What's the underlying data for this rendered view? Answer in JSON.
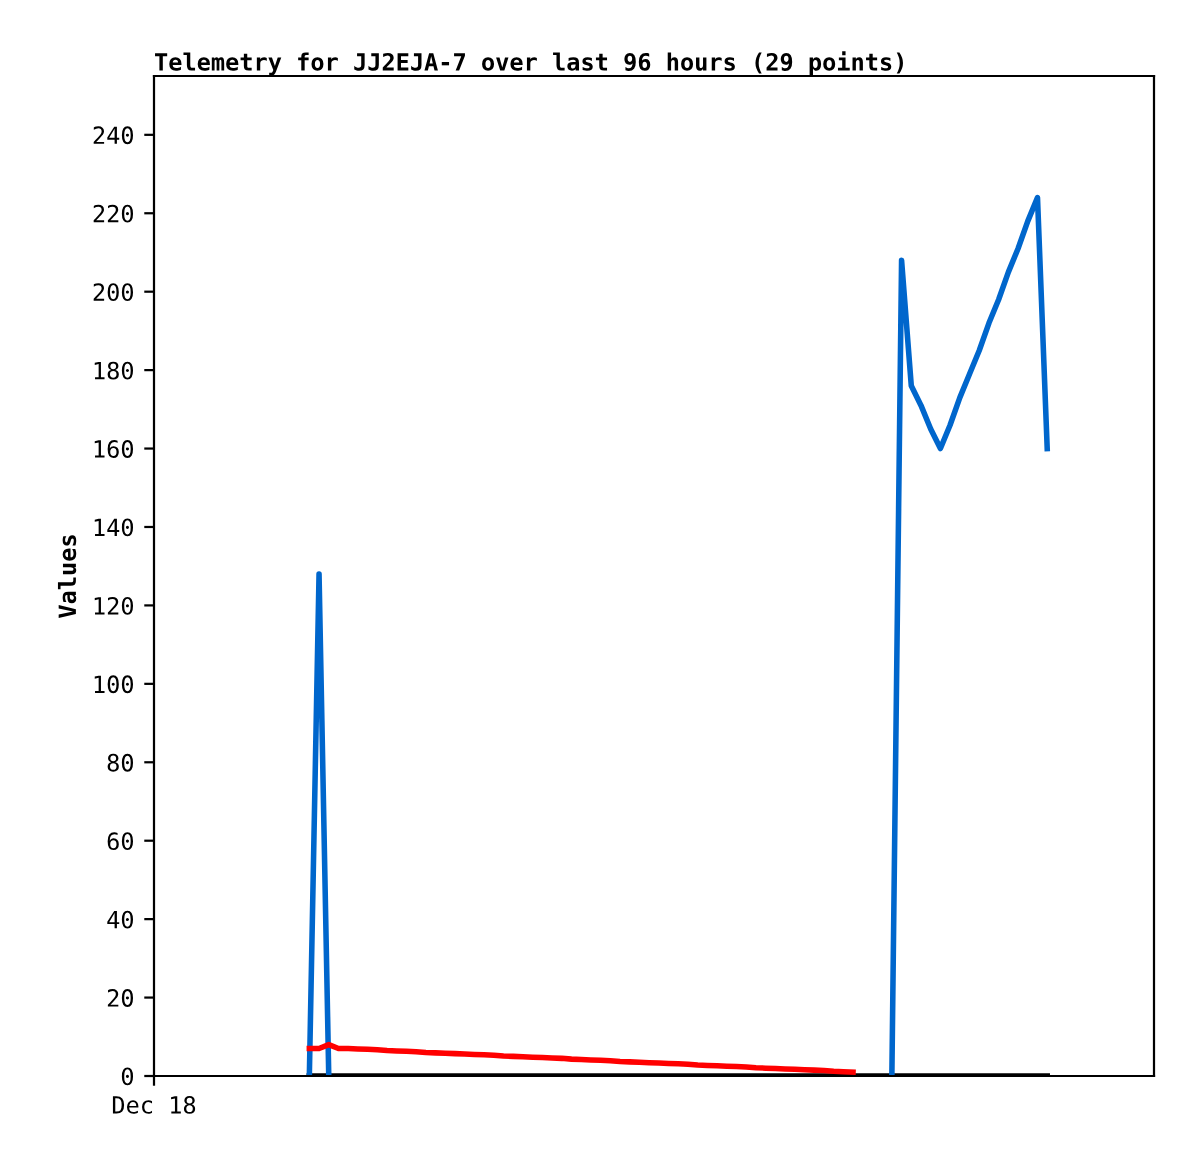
{
  "chart_data": {
    "type": "line",
    "title": "Telemetry for JJ2EJA-7 over last 96 hours (29 points)",
    "ylabel": "Values",
    "categories": [
      "Dec 18",
      null,
      null,
      null,
      null,
      null,
      null,
      null,
      null,
      null,
      null,
      null,
      null,
      null,
      null,
      null,
      null,
      null,
      null,
      null,
      null,
      null,
      null,
      null,
      null,
      null,
      null,
      null,
      null,
      null,
      null,
      null,
      null,
      null,
      null,
      null,
      null,
      null,
      null,
      null,
      null,
      null,
      null,
      null,
      null,
      null,
      null,
      null,
      null,
      null,
      null,
      null,
      null,
      null,
      null,
      null,
      null,
      null,
      null,
      null,
      null,
      null,
      null,
      null,
      null,
      null,
      null,
      null,
      null,
      null,
      null,
      null,
      null,
      null,
      null,
      null,
      null,
      null,
      null,
      null,
      null,
      null,
      null,
      null,
      null,
      null,
      null,
      null,
      null,
      null,
      null,
      null,
      null,
      null,
      null,
      null,
      null,
      null,
      null,
      null
    ],
    "ylim": [
      0,
      255
    ],
    "yticks": [
      0,
      20,
      40,
      60,
      80,
      100,
      120,
      140,
      160,
      180,
      200,
      220,
      240
    ],
    "grid": false,
    "legend": false,
    "series": [
      {
        "color": "#000000",
        "values": [
          null,
          null,
          null,
          null,
          null,
          null,
          null,
          null,
          null,
          null,
          null,
          null,
          null,
          null,
          null,
          null,
          0,
          0,
          0,
          0,
          0,
          0,
          0,
          0,
          0,
          0,
          0,
          0,
          0,
          0,
          0,
          0,
          0,
          0,
          0,
          0,
          0,
          0,
          0,
          0,
          0,
          0,
          0,
          0,
          0,
          0,
          0,
          0,
          0,
          0,
          0,
          0,
          0,
          0,
          0,
          0,
          0,
          0,
          0,
          0,
          0,
          0,
          0,
          0,
          0,
          0,
          0,
          0,
          0,
          0,
          0,
          0,
          0,
          0,
          0,
          0,
          0,
          0,
          0,
          0,
          0,
          0,
          0,
          0,
          0,
          0,
          0,
          0,
          0,
          0,
          0,
          0,
          0,
          null,
          null,
          null,
          null,
          null,
          null,
          null
        ]
      },
      {
        "color": "#0066cc",
        "values": [
          null,
          null,
          null,
          null,
          null,
          null,
          null,
          null,
          null,
          null,
          null,
          null,
          null,
          null,
          null,
          null,
          0,
          128,
          0,
          null,
          null,
          null,
          null,
          null,
          null,
          null,
          null,
          null,
          null,
          null,
          null,
          null,
          null,
          null,
          null,
          null,
          null,
          null,
          null,
          null,
          null,
          null,
          null,
          null,
          null,
          null,
          null,
          null,
          null,
          null,
          null,
          null,
          null,
          null,
          null,
          null,
          null,
          null,
          null,
          null,
          null,
          null,
          null,
          null,
          null,
          null,
          null,
          null,
          null,
          null,
          null,
          null,
          null,
          null,
          null,
          null,
          0,
          208,
          176,
          171,
          165,
          160,
          166,
          173,
          179,
          185,
          192,
          198,
          205,
          211,
          218,
          224,
          160,
          null,
          null,
          null,
          null,
          null,
          null,
          null
        ]
      },
      {
        "color": "#ff0000",
        "values": [
          null,
          null,
          null,
          null,
          null,
          null,
          null,
          null,
          null,
          null,
          null,
          null,
          null,
          null,
          null,
          null,
          7,
          7,
          8,
          7,
          7.0,
          6.9,
          6.8,
          6.7,
          6.5,
          6.4,
          6.3,
          6.2,
          6.0,
          5.9,
          5.8,
          5.7,
          5.6,
          5.5,
          5.4,
          5.3,
          5.1,
          5.0,
          4.9,
          4.8,
          4.7,
          4.6,
          4.5,
          4.3,
          4.2,
          4.1,
          4.0,
          3.9,
          3.7,
          3.6,
          3.5,
          3.4,
          3.3,
          3.2,
          3.1,
          3.0,
          2.8,
          2.7,
          2.6,
          2.5,
          2.4,
          2.3,
          2.1,
          2.0,
          1.9,
          1.8,
          1.7,
          1.6,
          1.5,
          1.4,
          1.2,
          1.1,
          1.0,
          null,
          null,
          null,
          null,
          null,
          null,
          null,
          null,
          null,
          null,
          null,
          null,
          null,
          null,
          null,
          null,
          null,
          null,
          null,
          null,
          null,
          null,
          null,
          null,
          null,
          null,
          null
        ]
      }
    ]
  }
}
